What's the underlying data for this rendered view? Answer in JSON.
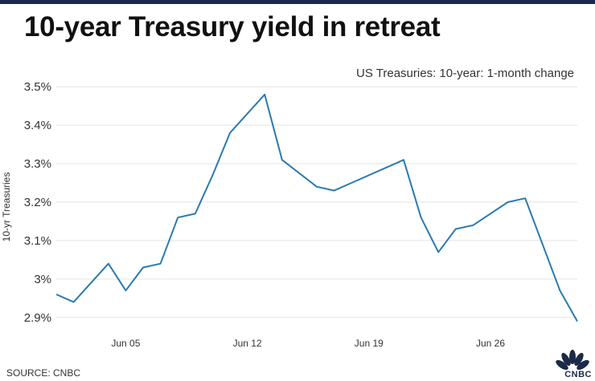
{
  "header": {
    "title": "10-year Treasury yield in retreat",
    "subtitle": "US Treasuries: 10-year: 1-month change"
  },
  "footer": {
    "source": "SOURCE: CNBC",
    "logo_text": "CNBC"
  },
  "colors": {
    "line": "#2a7ab0",
    "grid": "#e3e3e3",
    "bar": "#1b2a4a"
  },
  "chart_data": {
    "type": "line",
    "title": "10-year Treasury yield in retreat",
    "subtitle": "US Treasuries: 10-year: 1-month change",
    "xlabel": "",
    "ylabel": "10-yr Treasuries",
    "ylim": [
      2.887,
      3.513
    ],
    "yticks": [
      2.9,
      3.0,
      3.1,
      3.2,
      3.3,
      3.4,
      3.5
    ],
    "ytick_labels": [
      "2.9%",
      "3%",
      "3.1%",
      "3.2%",
      "3.3%",
      "3.4%",
      "3.5%"
    ],
    "xticks": [
      "Jun 05",
      "Jun 12",
      "Jun 19",
      "Jun 26"
    ],
    "xtick_positions": [
      "2018-06-05",
      "2018-06-12",
      "2018-06-19",
      "2018-06-26"
    ],
    "grid": true,
    "series": [
      {
        "x": [
          "2018-06-01",
          "2018-06-02",
          "2018-06-04",
          "2018-06-05",
          "2018-06-06",
          "2018-06-07",
          "2018-06-08",
          "2018-06-09",
          "2018-06-10",
          "2018-06-11",
          "2018-06-13",
          "2018-06-14",
          "2018-06-16",
          "2018-06-17",
          "2018-06-18",
          "2018-06-21",
          "2018-06-22",
          "2018-06-23",
          "2018-06-24",
          "2018-06-25",
          "2018-06-27",
          "2018-06-28",
          "2018-06-30",
          "2018-07-01"
        ],
        "values": [
          2.96,
          2.94,
          3.04,
          2.97,
          3.03,
          3.04,
          3.16,
          3.17,
          3.27,
          3.38,
          3.48,
          3.31,
          3.24,
          3.23,
          3.25,
          3.31,
          3.16,
          3.07,
          3.13,
          3.14,
          3.2,
          3.21,
          2.97,
          2.89
        ]
      }
    ]
  }
}
